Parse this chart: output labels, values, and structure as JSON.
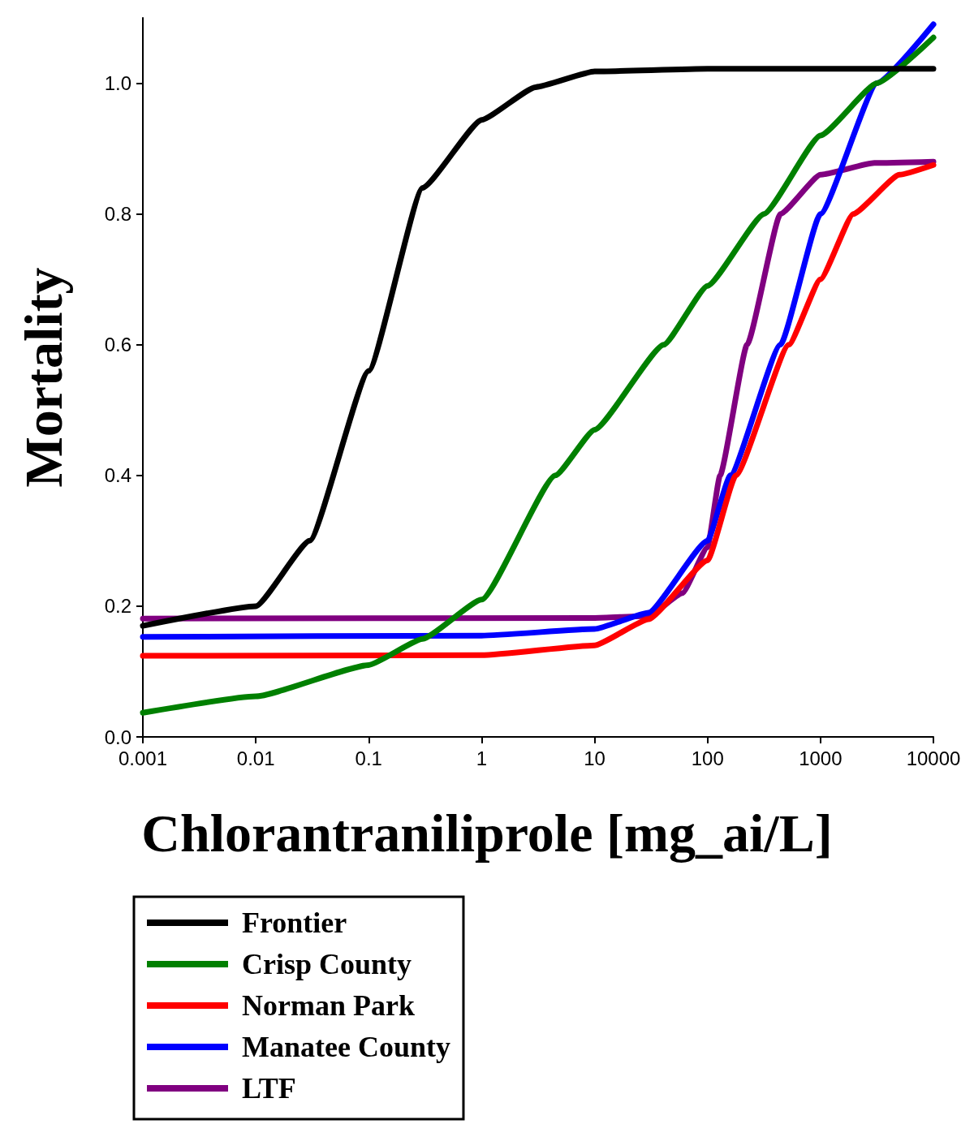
{
  "chart_data": {
    "type": "line",
    "xlabel": "Chlorantraniliprole [mg_ai/L]",
    "ylabel": "Mortality",
    "log": "x",
    "xlim": [
      0.001,
      10000
    ],
    "xticks": [
      0.001,
      0.01,
      0.1,
      1,
      10,
      100,
      1000,
      10000
    ],
    "ylim": [
      0,
      1.1
    ],
    "yticks": [
      {
        "value": 0,
        "label": "0.0"
      },
      {
        "value": 0.2,
        "label": "0.2"
      },
      {
        "value": 0.4,
        "label": "0.4"
      },
      {
        "value": 0.6,
        "label": "0.6"
      },
      {
        "value": 0.8,
        "label": "0.8"
      },
      {
        "value": 1,
        "label": "1.0"
      }
    ],
    "grid": false,
    "legend": "bottom",
    "marker": "none",
    "line_style": "solid",
    "series": [
      {
        "name": "Frontier",
        "color": "#000000",
        "x": [
          0.001,
          0.01,
          0.03,
          0.1,
          0.3,
          1,
          3,
          10,
          100,
          10000
        ],
        "values": [
          0.17,
          0.2,
          0.3,
          0.56,
          0.84,
          0.944,
          0.994,
          1.018,
          1.022,
          1.022
        ]
      },
      {
        "name": "Crisp County",
        "color": "#008000",
        "x": [
          0.001,
          0.01,
          0.1,
          0.3,
          1,
          4.5,
          10,
          41,
          100,
          316,
          1000,
          3162,
          10000
        ],
        "values": [
          0.037,
          0.062,
          0.11,
          0.15,
          0.21,
          0.4,
          0.47,
          0.6,
          0.69,
          0.8,
          0.92,
          1.0,
          1.07
        ]
      },
      {
        "name": "Norman Park",
        "color": "#ff0000",
        "x": [
          0.001,
          1,
          10,
          30,
          100,
          178,
          525,
          1000,
          1950,
          5000,
          10000
        ],
        "values": [
          0.124,
          0.125,
          0.14,
          0.18,
          0.27,
          0.4,
          0.6,
          0.7,
          0.8,
          0.86,
          0.875
        ]
      },
      {
        "name": "Manatee County",
        "color": "#0000ff",
        "x": [
          0.001,
          1,
          10,
          30,
          100,
          159,
          442,
          1000,
          3162,
          10000
        ],
        "values": [
          0.153,
          0.155,
          0.165,
          0.19,
          0.3,
          0.4,
          0.6,
          0.8,
          1.0,
          1.09
        ]
      },
      {
        "name": "LTF",
        "color": "#800080",
        "x": [
          0.001,
          10,
          30,
          60,
          100,
          129,
          224,
          442,
          1000,
          3000,
          10000
        ],
        "values": [
          0.181,
          0.182,
          0.185,
          0.22,
          0.29,
          0.4,
          0.6,
          0.8,
          0.86,
          0.878,
          0.88
        ]
      }
    ]
  }
}
